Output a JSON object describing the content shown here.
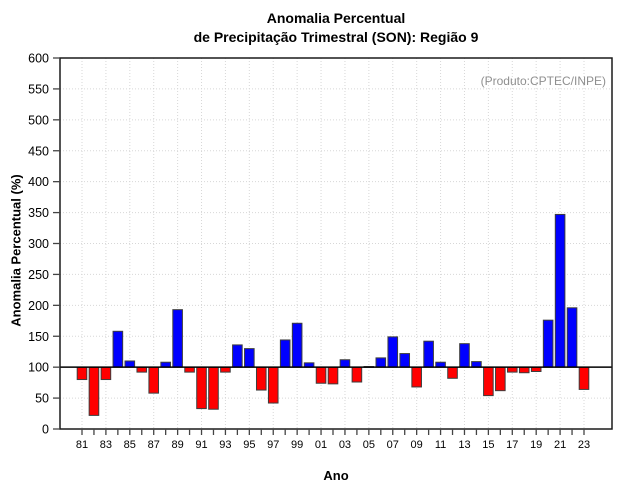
{
  "chart": {
    "title_line1": "Anomalia Percentual",
    "title_line2": "de Precipitação Trimestral (SON): Região 9",
    "annotation": "(Produto:CPTEC/INPE)",
    "ylabel": "Anomalia Percentual (%)",
    "xlabel": "Ano"
  },
  "chart_data": {
    "type": "bar",
    "title": "Anomalia Percentual de Precipitação Trimestral (SON): Região 9",
    "annotation": "(Produto:CPTEC/INPE)",
    "xlabel": "Ano",
    "ylabel": "Anomalia Percentual (%)",
    "ylim": [
      0,
      600
    ],
    "y_tick_step": 50,
    "y_tick_labels": [
      "0",
      "50",
      "100",
      "150",
      "200",
      "250",
      "300",
      "350",
      "400",
      "450",
      "500",
      "550",
      "600"
    ],
    "baseline": 100,
    "categories": [
      "81",
      "82",
      "83",
      "84",
      "85",
      "86",
      "87",
      "88",
      "89",
      "90",
      "91",
      "92",
      "93",
      "94",
      "95",
      "96",
      "97",
      "98",
      "99",
      "00",
      "01",
      "02",
      "03",
      "04",
      "05",
      "06",
      "07",
      "08",
      "09",
      "10",
      "11",
      "12",
      "13",
      "14",
      "15",
      "16",
      "17",
      "18",
      "19",
      "20",
      "21",
      "22",
      "23"
    ],
    "values": [
      80,
      22,
      80,
      158,
      110,
      92,
      58,
      108,
      193,
      92,
      33,
      32,
      92,
      136,
      130,
      63,
      42,
      144,
      171,
      107,
      74,
      73,
      112,
      76,
      101,
      115,
      149,
      122,
      68,
      142,
      108,
      82,
      138,
      109,
      54,
      62,
      92,
      91,
      93,
      176,
      347,
      196,
      64
    ],
    "x_tick_labels_shown": [
      "81",
      "83",
      "85",
      "87",
      "89",
      "91",
      "93",
      "95",
      "97",
      "99",
      "01",
      "03",
      "05",
      "07",
      "09",
      "11",
      "13",
      "15",
      "17",
      "19",
      "21",
      "23"
    ],
    "positive_color": "#0000ff",
    "negative_color": "#ff0000",
    "bar_outline_color": "#3d3d3d",
    "color_rule": "blue if value >= 100 else red",
    "grid": "dotted",
    "gridline_color": "#d7d7d7",
    "legend": "none"
  }
}
